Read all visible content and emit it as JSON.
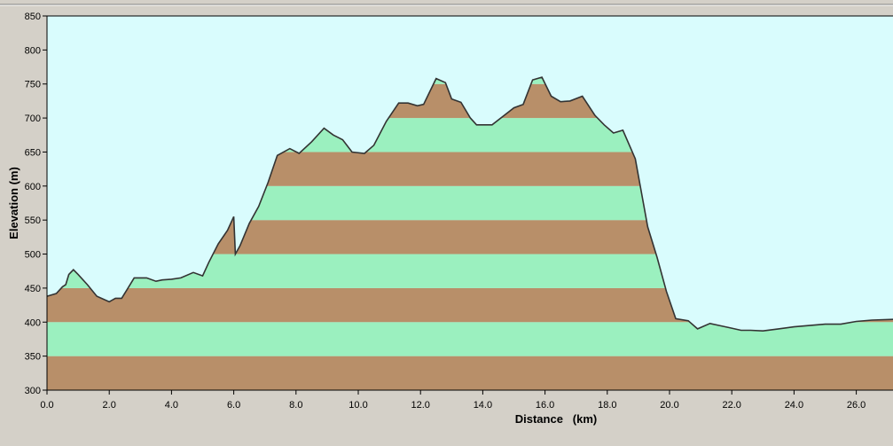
{
  "chart_data": {
    "type": "area",
    "xlabel": "Distance   (km)",
    "ylabel": "Elevation (m)",
    "xlim": [
      0,
      27.2
    ],
    "ylim": [
      300,
      850
    ],
    "x_ticks": [
      "0.0",
      "2.0",
      "4.0",
      "6.0",
      "8.0",
      "10.0",
      "12.0",
      "14.0",
      "16.0",
      "18.0",
      "20.0",
      "22.0",
      "24.0",
      "26.0"
    ],
    "y_ticks": [
      "300",
      "350",
      "400",
      "450",
      "500",
      "550",
      "600",
      "650",
      "700",
      "750",
      "800",
      "850"
    ],
    "band_height": 50,
    "colors": {
      "sky": "#d9fcfd",
      "band_green": "#9bf0bf",
      "band_brown": "#b88f69",
      "outline": "#333333"
    },
    "x": [
      0,
      0.3,
      0.5,
      0.6,
      0.7,
      0.85,
      1.0,
      1.3,
      1.6,
      2.0,
      2.2,
      2.4,
      2.6,
      2.8,
      3.2,
      3.5,
      3.7,
      4.0,
      4.3,
      4.7,
      5.0,
      5.2,
      5.5,
      5.8,
      6.0,
      6.05,
      6.2,
      6.5,
      6.8,
      7.1,
      7.4,
      7.8,
      8.1,
      8.5,
      8.9,
      9.2,
      9.5,
      9.8,
      10.2,
      10.5,
      10.9,
      11.3,
      11.6,
      11.9,
      12.1,
      12.5,
      12.8,
      13.0,
      13.3,
      13.6,
      13.8,
      14.0,
      14.3,
      15.0,
      15.3,
      15.6,
      15.9,
      16.2,
      16.5,
      16.8,
      17.2,
      17.6,
      17.9,
      18.2,
      18.5,
      18.9,
      19.3,
      19.6,
      19.9,
      20.2,
      20.6,
      20.9,
      21.3,
      21.6,
      21.9,
      22.3,
      22.6,
      23.0,
      23.5,
      24.0,
      24.5,
      25.0,
      25.5,
      26.0,
      26.5,
      27.2
    ],
    "y": [
      438,
      442,
      452,
      455,
      470,
      477,
      470,
      455,
      438,
      430,
      435,
      435,
      450,
      465,
      465,
      460,
      462,
      463,
      465,
      473,
      468,
      488,
      515,
      535,
      555,
      500,
      512,
      545,
      570,
      605,
      645,
      655,
      648,
      665,
      685,
      675,
      668,
      650,
      648,
      660,
      695,
      722,
      722,
      718,
      720,
      758,
      752,
      728,
      723,
      700,
      690,
      690,
      690,
      715,
      720,
      756,
      760,
      732,
      724,
      725,
      732,
      704,
      690,
      678,
      682,
      640,
      540,
      495,
      445,
      405,
      402,
      390,
      398,
      395,
      392,
      388,
      388,
      387,
      390,
      393,
      395,
      397,
      397,
      401,
      403,
      404
    ]
  }
}
